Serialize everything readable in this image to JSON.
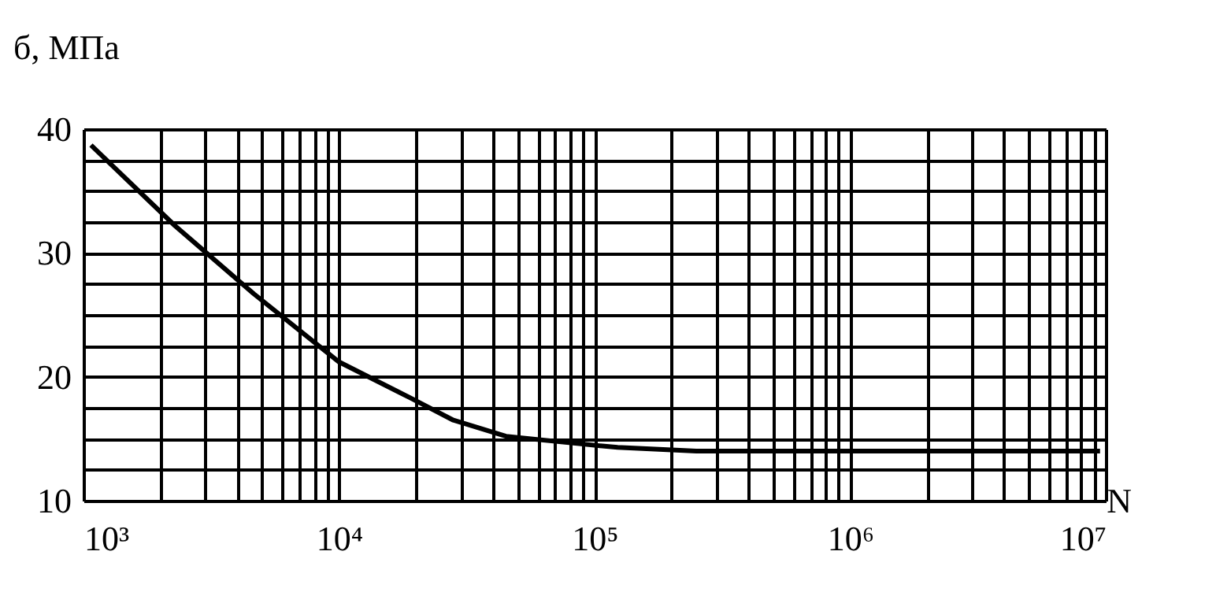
{
  "chart_data": {
    "type": "line",
    "xlabel": "N",
    "ylabel": "б, МПа",
    "log": "x",
    "grid": true,
    "marker": "none",
    "line_style": "solid",
    "xlim": [
      1000,
      10000000
    ],
    "ylim": [
      10,
      40
    ],
    "xticks": [
      {
        "value": 1000,
        "label": "10³"
      },
      {
        "value": 2000,
        "label": null
      },
      {
        "value": 3000,
        "label": null
      },
      {
        "value": 4000,
        "label": null
      },
      {
        "value": 5000,
        "label": null
      },
      {
        "value": 6000,
        "label": null
      },
      {
        "value": 7000,
        "label": null
      },
      {
        "value": 8000,
        "label": null
      },
      {
        "value": 9000,
        "label": null
      },
      {
        "value": 10000,
        "label": "10⁴"
      },
      {
        "value": 20000,
        "label": null
      },
      {
        "value": 30000,
        "label": null
      },
      {
        "value": 40000,
        "label": null
      },
      {
        "value": 50000,
        "label": null
      },
      {
        "value": 60000,
        "label": null
      },
      {
        "value": 70000,
        "label": null
      },
      {
        "value": 80000,
        "label": null
      },
      {
        "value": 90000,
        "label": null
      },
      {
        "value": 100000,
        "label": "10⁵"
      },
      {
        "value": 200000,
        "label": null
      },
      {
        "value": 300000,
        "label": null
      },
      {
        "value": 400000,
        "label": null
      },
      {
        "value": 500000,
        "label": null
      },
      {
        "value": 600000,
        "label": null
      },
      {
        "value": 700000,
        "label": null
      },
      {
        "value": 800000,
        "label": null
      },
      {
        "value": 900000,
        "label": null
      },
      {
        "value": 1000000,
        "label": "10⁶"
      },
      {
        "value": 2000000,
        "label": null
      },
      {
        "value": 3000000,
        "label": null
      },
      {
        "value": 4000000,
        "label": null
      },
      {
        "value": 5000000,
        "label": null
      },
      {
        "value": 6000000,
        "label": null
      },
      {
        "value": 7000000,
        "label": null
      },
      {
        "value": 8000000,
        "label": null
      },
      {
        "value": 9000000,
        "label": null
      },
      {
        "value": 10000000,
        "label": "10⁷"
      }
    ],
    "yticks": [
      10,
      {
        "value": 12.5,
        "label": null
      },
      {
        "value": 15,
        "label": null
      },
      {
        "value": 17.5,
        "label": null
      },
      20,
      {
        "value": 22.5,
        "label": null
      },
      {
        "value": 25,
        "label": null
      },
      {
        "value": 27.5,
        "label": null
      },
      30,
      {
        "value": 32.5,
        "label": null
      },
      {
        "value": 35,
        "label": null
      },
      {
        "value": 37.5,
        "label": null
      },
      40
    ],
    "x": [
      1070,
      2280,
      4640,
      10000,
      19000,
      28000,
      45000,
      87000,
      123000,
      250000,
      9500000
    ],
    "series": [
      {
        "color": "#000000",
        "values": [
          38.7,
          32.2,
          26.7,
          21.2,
          18.3,
          16.5,
          15.2,
          14.6,
          14.3,
          14.0,
          14.0
        ]
      }
    ]
  }
}
